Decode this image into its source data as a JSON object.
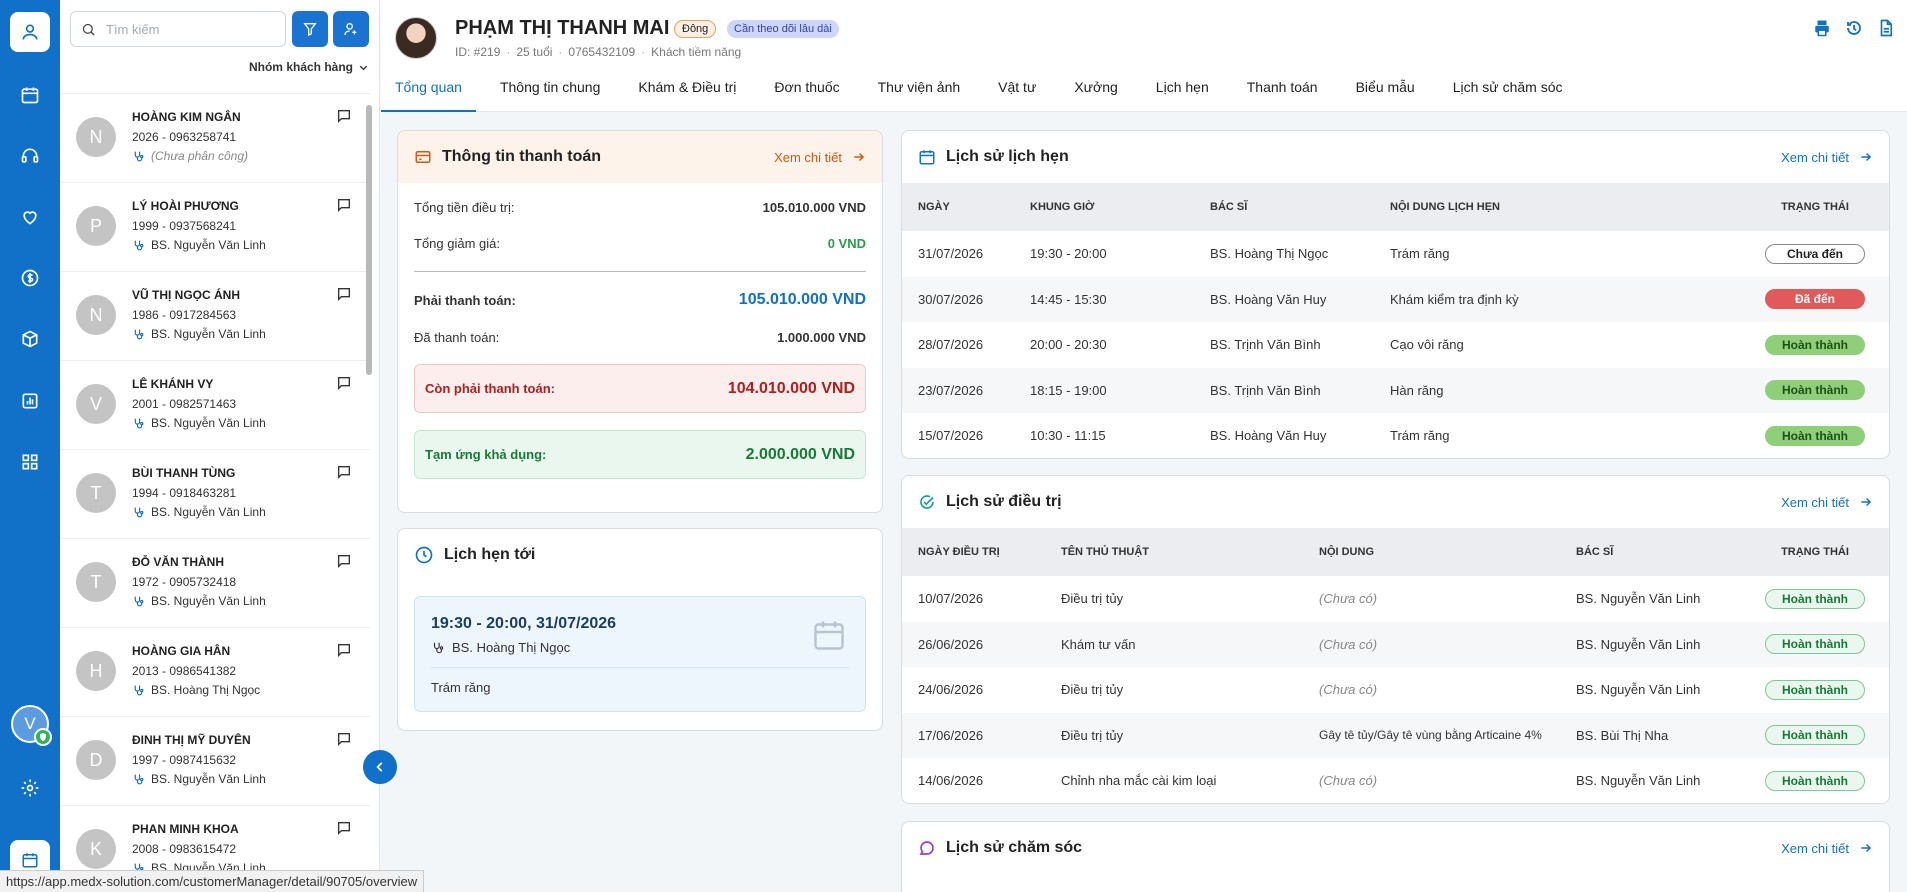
{
  "search": {
    "placeholder": "Tìm kiếm"
  },
  "list_panel": {
    "group_label": "Nhóm khách hàng"
  },
  "customers": [
    {
      "initial": "N",
      "name": "HOÀNG KIM NGÂN",
      "meta": "2026 - 0963258741",
      "doctor": "(Chưa phân công)",
      "unassigned": true
    },
    {
      "initial": "P",
      "name": "LÝ HOÀI PHƯƠNG",
      "meta": "1999 - 0937568241",
      "doctor": "BS. Nguyễn Văn Linh"
    },
    {
      "initial": "N",
      "name": "VŨ THỊ NGỌC ÁNH",
      "meta": "1986 - 0917284563",
      "doctor": "BS. Nguyễn Văn Linh"
    },
    {
      "initial": "V",
      "name": "LÊ KHÁNH VY",
      "meta": "2001 - 0982571463",
      "doctor": "BS. Nguyễn Văn Linh"
    },
    {
      "initial": "T",
      "name": "BÙI THANH TÙNG",
      "meta": "1994 - 0918463281",
      "doctor": "BS. Nguyễn Văn Linh"
    },
    {
      "initial": "T",
      "name": "ĐỖ VĂN THÀNH",
      "meta": "1972 - 0905732418",
      "doctor": "BS. Nguyễn Văn Linh"
    },
    {
      "initial": "H",
      "name": "HOÀNG GIA HÂN",
      "meta": "2013 - 0986541382",
      "doctor": "BS. Hoàng Thị Ngọc"
    },
    {
      "initial": "D",
      "name": "ĐINH THỊ MỸ DUYÊN",
      "meta": "1997 - 0987415632",
      "doctor": "BS. Nguyễn Văn Linh"
    },
    {
      "initial": "K",
      "name": "PHAN MINH KHOA",
      "meta": "2008 - 0983615472",
      "doctor": "BS. Nguyễn Văn Linh"
    }
  ],
  "user": {
    "initial": "V"
  },
  "patient": {
    "name": "PHẠM THỊ THANH MAI",
    "badge_source": "Đông",
    "badge_status": "Cần theo dõi lâu dài",
    "id": "ID: #219",
    "age": "25 tuổi",
    "phone": "0765432109",
    "type": "Khách tiềm năng"
  },
  "tabs": [
    "Tổng quan",
    "Thông tin chung",
    "Khám & Điều trị",
    "Đơn thuốc",
    "Thư viện ảnh",
    "Vật tư",
    "Xưởng",
    "Lịch hẹn",
    "Thanh toán",
    "Biểu mẫu",
    "Lịch sử chăm sóc"
  ],
  "payment": {
    "title": "Thông tin thanh toán",
    "link": "Xem chi tiết",
    "total_label": "Tổng tiền điều trị:",
    "total": "105.010.000 VND",
    "discount_label": "Tổng giảm giá:",
    "discount": "0 VND",
    "payable_label": "Phải thanh toán:",
    "payable": "105.010.000 VND",
    "paid_label": "Đã thanh toán:",
    "paid": "1.000.000 VND",
    "remaining_label": "Còn phải thanh toán:",
    "remaining": "104.010.000 VND",
    "advance_label": "Tạm ứng khả dụng:",
    "advance": "2.000.000 VND"
  },
  "upcoming": {
    "title": "Lịch hẹn tới",
    "time": "19:30 - 20:00, 31/07/2026",
    "doctor": "BS. Hoàng Thị Ngọc",
    "service": "Trám răng"
  },
  "appointments": {
    "title": "Lịch sử lịch hẹn",
    "link": "Xem chi tiết",
    "headers": [
      "NGÀY",
      "KHUNG GIỜ",
      "BÁC SĨ",
      "NỘI DUNG LỊCH HẸN",
      "TRẠNG THÁI"
    ],
    "rows": [
      {
        "date": "31/07/2026",
        "time": "19:30 - 20:00",
        "doctor": "BS. Hoàng Thị Ngọc",
        "content": "Trám răng",
        "status": "Chưa đến",
        "kind": "pend"
      },
      {
        "date": "30/07/2026",
        "time": "14:45 - 15:30",
        "doctor": "BS. Hoàng Văn Huy",
        "content": "Khám kiểm tra định kỳ",
        "status": "Đã đến",
        "kind": "came"
      },
      {
        "date": "28/07/2026",
        "time": "20:00 - 20:30",
        "doctor": "BS. Trịnh Văn Bình",
        "content": "Cạo vôi răng",
        "status": "Hoàn thành",
        "kind": "done"
      },
      {
        "date": "23/07/2026",
        "time": "18:15 - 19:00",
        "doctor": "BS. Trịnh Văn Bình",
        "content": "Hàn răng",
        "status": "Hoàn thành",
        "kind": "done"
      },
      {
        "date": "15/07/2026",
        "time": "10:30 - 11:15",
        "doctor": "BS. Hoàng Văn Huy",
        "content": "Trám răng",
        "status": "Hoàn thành",
        "kind": "done"
      }
    ]
  },
  "treatments": {
    "title": "Lịch sử điều trị",
    "link": "Xem chi tiết",
    "headers": [
      "NGÀY ĐIỀU TRỊ",
      "TÊN THỦ THUẬT",
      "NỘI DUNG",
      "BÁC SĨ",
      "TRẠNG THÁI"
    ],
    "rows": [
      {
        "date": "10/07/2026",
        "proc": "Điều trị tủy",
        "content": "(Chưa có)",
        "empty": true,
        "doctor": "BS. Nguyễn Văn Linh",
        "status": "Hoàn thành"
      },
      {
        "date": "26/06/2026",
        "proc": "Khám tư vấn",
        "content": "(Chưa có)",
        "empty": true,
        "doctor": "BS. Nguyễn Văn Linh",
        "status": "Hoàn thành"
      },
      {
        "date": "24/06/2026",
        "proc": "Điều trị tủy",
        "content": "(Chưa có)",
        "empty": true,
        "doctor": "BS. Nguyễn Văn Linh",
        "status": "Hoàn thành"
      },
      {
        "date": "17/06/2026",
        "proc": "Điều trị tủy",
        "content": "Gây tê tủy/Gây tê vùng bằng Articaine 4%",
        "empty": false,
        "doctor": "BS. Bùi Thị Nha",
        "status": "Hoàn thành"
      },
      {
        "date": "14/06/2026",
        "proc": "Chỉnh nha mắc cài kim loại",
        "content": "(Chưa có)",
        "empty": true,
        "doctor": "BS. Nguyễn Văn Linh",
        "status": "Hoàn thành"
      }
    ]
  },
  "care": {
    "title": "Lịch sử chăm sóc",
    "link": "Xem chi tiết"
  },
  "status_url": "https://app.medx-solution.com/customerManager/detail/90705/overview"
}
